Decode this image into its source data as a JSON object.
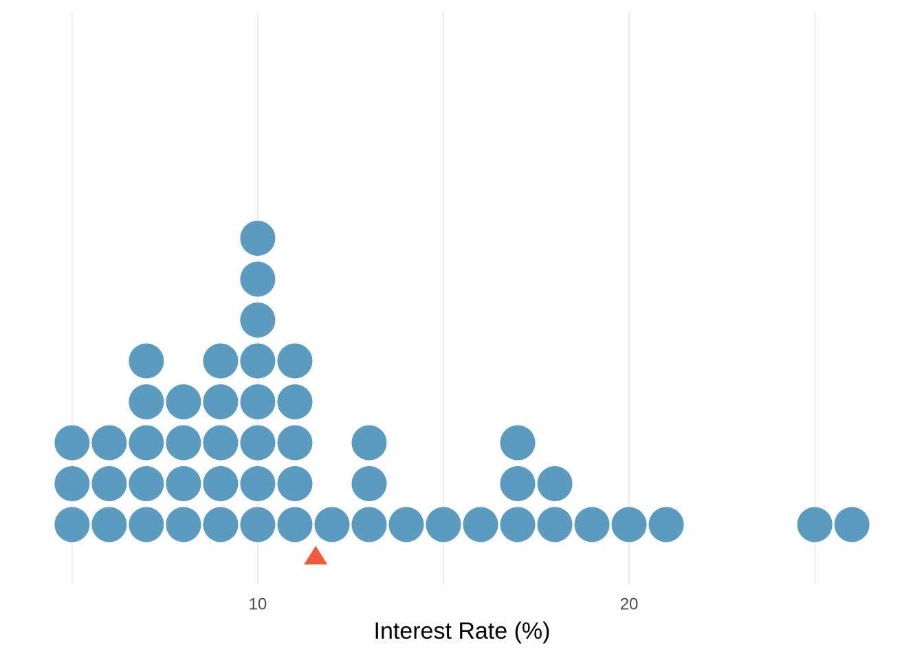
{
  "chart_data": {
    "type": "dotplot",
    "x_label": "Interest Rate (%)",
    "x": [
      5,
      6,
      7,
      8,
      9,
      10,
      11,
      12,
      13,
      14,
      15,
      16,
      17,
      18,
      19,
      20,
      21,
      25,
      26
    ],
    "counts": [
      3,
      3,
      5,
      4,
      5,
      8,
      5,
      1,
      3,
      1,
      1,
      1,
      3,
      2,
      1,
      1,
      1,
      1,
      1
    ],
    "color": "#5a9bbf",
    "mean": 11.56,
    "mean_color": "#f15a3a",
    "xlim": [
      4.54,
      26.46
    ],
    "xticks": [
      10,
      20
    ],
    "minor_grid": [
      5,
      15,
      25
    ],
    "grid": true
  }
}
